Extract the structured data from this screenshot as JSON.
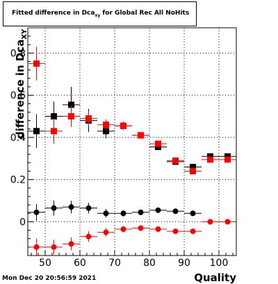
{
  "chart_data": {
    "type": "scatter",
    "title_main": "Fitted difference in Dca",
    "title_sub": "xy",
    "title_rest": " for Global Rec All NoHits",
    "xlabel": "Quality",
    "ylabel_main": "difference in Dca",
    "ylabel_sub": "XY",
    "xlim": [
      45,
      105
    ],
    "ylim": [
      -0.16,
      0.92
    ],
    "x_ticks": [
      50,
      60,
      70,
      80,
      90,
      100
    ],
    "y_ticks": [
      0,
      0.2,
      0.4,
      0.6,
      0.8
    ],
    "y_tick_labels": [
      "0",
      "0.2",
      "0.4",
      "0.6",
      "0.8"
    ],
    "grid": true,
    "timestamp": "Mon Dec 20 20:56:59 2021",
    "series": [
      {
        "marker": "square",
        "color": "#000000",
        "points": [
          {
            "x": 47.5,
            "y": 0.43,
            "ey": 0.08
          },
          {
            "x": 52.5,
            "y": 0.5,
            "ey": 0.07
          },
          {
            "x": 57.5,
            "y": 0.555,
            "ey": 0.085
          },
          {
            "x": 62.5,
            "y": 0.48,
            "ey": 0.055
          },
          {
            "x": 67.5,
            "y": 0.43,
            "ey": 0.035
          },
          {
            "x": 72.5,
            "y": 0.455,
            "ey": 0.02
          },
          {
            "x": 77.5,
            "y": 0.41,
            "ey": 0.015
          },
          {
            "x": 82.5,
            "y": 0.355,
            "ey": 0.015
          },
          {
            "x": 87.5,
            "y": 0.285,
            "ey": 0.012
          },
          {
            "x": 92.5,
            "y": 0.26,
            "ey": 0.012
          },
          {
            "x": 97.5,
            "y": 0.31,
            "ey": 0.01
          },
          {
            "x": 102.5,
            "y": 0.31,
            "ey": 0.01
          }
        ]
      },
      {
        "marker": "square",
        "color": "#ff0000",
        "points": [
          {
            "x": 47.5,
            "y": 0.75,
            "ey": 0.08
          },
          {
            "x": 52.5,
            "y": 0.43,
            "ey": 0.06
          },
          {
            "x": 57.5,
            "y": 0.5,
            "ey": 0.05
          },
          {
            "x": 62.5,
            "y": 0.49,
            "ey": 0.035
          },
          {
            "x": 67.5,
            "y": 0.46,
            "ey": 0.025
          },
          {
            "x": 72.5,
            "y": 0.455,
            "ey": 0.02
          },
          {
            "x": 77.5,
            "y": 0.41,
            "ey": 0.015
          },
          {
            "x": 82.5,
            "y": 0.37,
            "ey": 0.015
          },
          {
            "x": 87.5,
            "y": 0.29,
            "ey": 0.012
          },
          {
            "x": 92.5,
            "y": 0.24,
            "ey": 0.012
          },
          {
            "x": 97.5,
            "y": 0.295,
            "ey": 0.01
          },
          {
            "x": 102.5,
            "y": 0.295,
            "ey": 0.01
          }
        ]
      },
      {
        "marker": "circle",
        "color": "#000000",
        "points": [
          {
            "x": 47.5,
            "y": 0.045,
            "ey": 0.04
          },
          {
            "x": 52.5,
            "y": 0.065,
            "ey": 0.035
          },
          {
            "x": 57.5,
            "y": 0.07,
            "ey": 0.03
          },
          {
            "x": 62.5,
            "y": 0.065,
            "ey": 0.025
          },
          {
            "x": 67.5,
            "y": 0.04,
            "ey": 0.02
          },
          {
            "x": 72.5,
            "y": 0.04,
            "ey": 0.015
          },
          {
            "x": 77.5,
            "y": 0.045,
            "ey": 0.012
          },
          {
            "x": 82.5,
            "y": 0.055,
            "ey": 0.01
          },
          {
            "x": 87.5,
            "y": 0.05,
            "ey": 0.01
          },
          {
            "x": 92.5,
            "y": 0.04,
            "ey": 0.01
          }
        ]
      },
      {
        "marker": "circle",
        "color": "#ff0000",
        "points": [
          {
            "x": 47.5,
            "y": -0.12,
            "ey": 0.04
          },
          {
            "x": 52.5,
            "y": -0.12,
            "ey": 0.035
          },
          {
            "x": 57.5,
            "y": -0.105,
            "ey": 0.03
          },
          {
            "x": 62.5,
            "y": -0.07,
            "ey": 0.025
          },
          {
            "x": 67.5,
            "y": -0.05,
            "ey": 0.02
          },
          {
            "x": 72.5,
            "y": -0.035,
            "ey": 0.015
          },
          {
            "x": 77.5,
            "y": -0.03,
            "ey": 0.012
          },
          {
            "x": 82.5,
            "y": -0.035,
            "ey": 0.01
          },
          {
            "x": 87.5,
            "y": -0.045,
            "ey": 0.01
          },
          {
            "x": 92.5,
            "y": -0.045,
            "ey": 0.01
          },
          {
            "x": 97.5,
            "y": 0.0,
            "ey": 0.005
          },
          {
            "x": 102.5,
            "y": 0.0,
            "ey": 0.005
          }
        ]
      }
    ]
  }
}
